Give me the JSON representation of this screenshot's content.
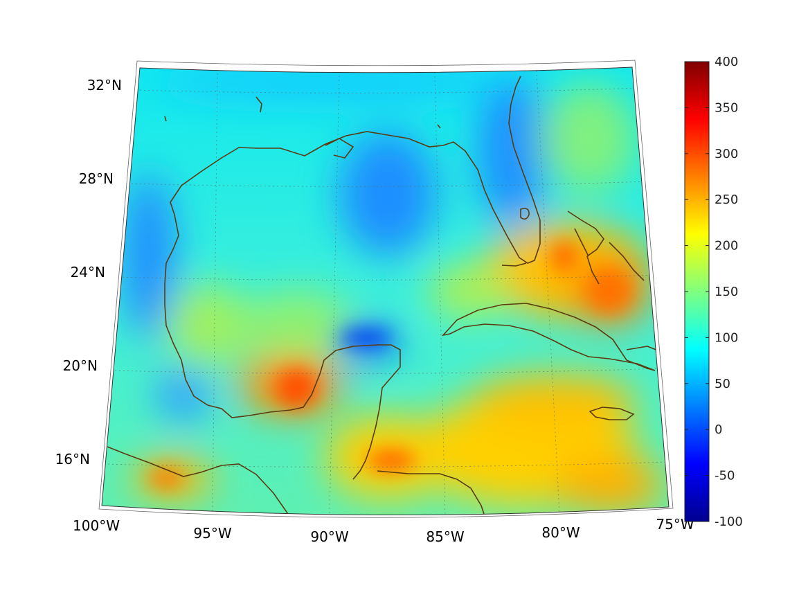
{
  "map": {
    "lat_labels": [
      {
        "value": 32,
        "text": "32°N"
      },
      {
        "value": 28,
        "text": "28°N"
      },
      {
        "value": 24,
        "text": "24°N"
      },
      {
        "value": 20,
        "text": "20°N"
      },
      {
        "value": 16,
        "text": "16°N"
      }
    ],
    "lon_labels": [
      {
        "value": -100,
        "text": "100°W"
      },
      {
        "value": -95,
        "text": "95°W"
      },
      {
        "value": -90,
        "text": "90°W"
      },
      {
        "value": -85,
        "text": "85°W"
      },
      {
        "value": -80,
        "text": "80°W"
      },
      {
        "value": -75,
        "text": "75°W"
      }
    ],
    "grid": true,
    "coastline_color": "#5a3a10"
  },
  "colorbar": {
    "colormap": "jet",
    "range": [
      -100,
      400
    ],
    "ticks": [
      "400",
      "350",
      "300",
      "250",
      "200",
      "150",
      "100",
      "50",
      "0",
      "-50",
      "-100"
    ],
    "placement": "right"
  }
}
